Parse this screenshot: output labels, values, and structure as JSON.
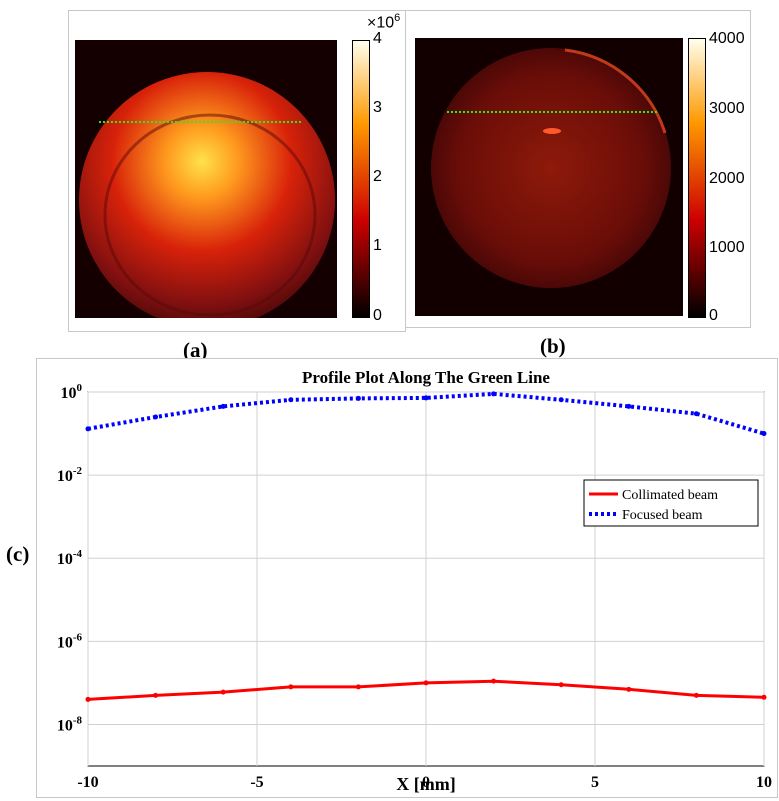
{
  "panels": {
    "a": {
      "label": "(a)",
      "exponent_base": "×10",
      "exponent_power": "6",
      "colorbar_ticks": [
        "4",
        "3",
        "2",
        "1",
        "0"
      ]
    },
    "b": {
      "label": "(b)",
      "colorbar_ticks": [
        "4000",
        "3000",
        "2000",
        "1000",
        "0"
      ]
    },
    "c": {
      "label": "(c)"
    }
  },
  "colors": {
    "collimated": "#ff0000",
    "focused": "#0000ff",
    "green_line": "#22ee22",
    "dark_bg": "#120000"
  },
  "chart_data": [
    {
      "type": "heatmap",
      "panel": "(a)",
      "colorbar": {
        "range": [
          0,
          4000000
        ],
        "ticks": [
          0,
          1,
          2,
          3,
          4
        ],
        "multiplier": "×10^6"
      },
      "annotations": [
        "green dotted horizontal profile line"
      ]
    },
    {
      "type": "heatmap",
      "panel": "(b)",
      "colorbar": {
        "range": [
          0,
          4000
        ],
        "ticks": [
          0,
          1000,
          2000,
          3000,
          4000
        ]
      },
      "annotations": [
        "green dotted horizontal profile line"
      ]
    },
    {
      "type": "line",
      "panel": "(c)",
      "title": "Profile Plot Along The Green Line",
      "xlabel": "X [mm]",
      "ylabel": "",
      "xlim": [
        -10,
        10
      ],
      "ylim": [
        1e-09,
        1
      ],
      "yscale": "log",
      "grid": true,
      "legend_position": "right",
      "x_ticks": [
        "-10",
        "-5",
        "0",
        "5",
        "10"
      ],
      "y_ticks": [
        {
          "base": "10",
          "exp": "0"
        },
        {
          "base": "10",
          "exp": "-2"
        },
        {
          "base": "10",
          "exp": "-4"
        },
        {
          "base": "10",
          "exp": "-6"
        },
        {
          "base": "10",
          "exp": "-8"
        }
      ],
      "x": [
        -10,
        -8,
        -6,
        -4,
        -2,
        0,
        2,
        4,
        6,
        8,
        10
      ],
      "series": [
        {
          "name": "Collimated beam",
          "style": "solid",
          "values": [
            4e-08,
            5e-08,
            6e-08,
            8e-08,
            8e-08,
            1e-07,
            1.1e-07,
            9e-08,
            7e-08,
            5e-08,
            4.5e-08
          ]
        },
        {
          "name": "Focused beam",
          "style": "dotted",
          "values": [
            0.13,
            0.25,
            0.45,
            0.65,
            0.7,
            0.72,
            0.9,
            0.65,
            0.45,
            0.3,
            0.1
          ]
        }
      ]
    }
  ]
}
